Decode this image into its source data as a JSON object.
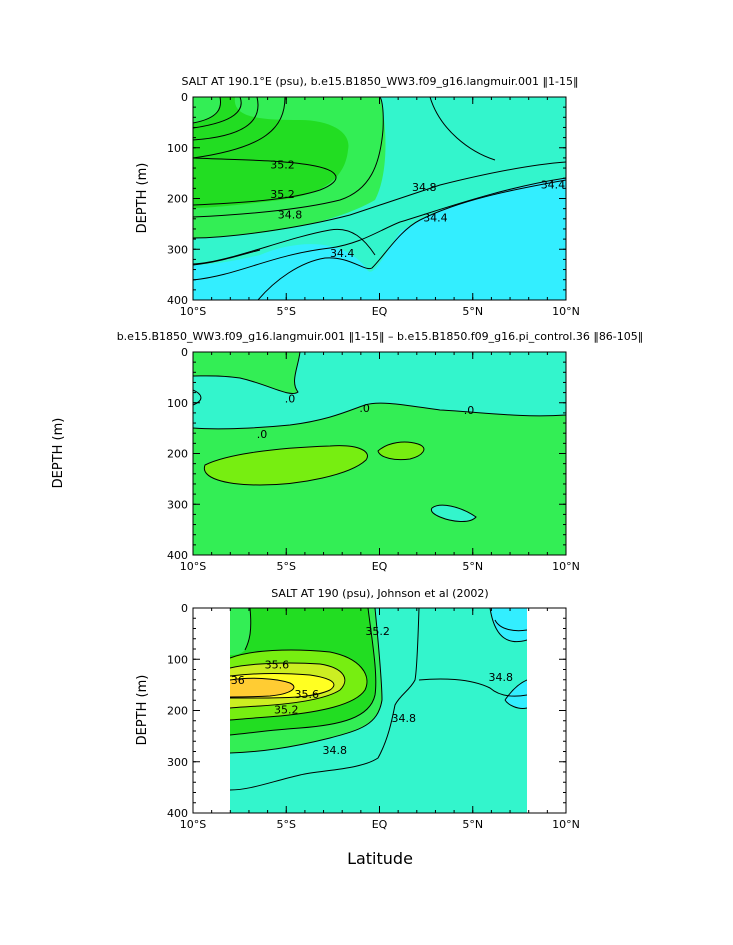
{
  "figure": {
    "xlabel": "Latitude",
    "x_ticks": [
      "10°S",
      "5°S",
      "EQ",
      "5°N",
      "10°N"
    ],
    "y_ticks": [
      "0",
      "100",
      "200",
      "300",
      "400"
    ],
    "colors": {
      "cyan": "#33eeff",
      "aqua": "#33f5cc",
      "green": "#33ee55",
      "darkgreen": "#22dd22",
      "lime": "#77ee11",
      "yellowgreen": "#ccee22",
      "yellow": "#ffff22",
      "orange": "#ffcc33"
    }
  },
  "chart_data": [
    {
      "type": "contour",
      "title": "SALT AT 190.1°E (psu), b.e15.B1850_WW3.f09_g16.langmuir.001 ‖1-15‖",
      "xlabel": "",
      "ylabel": "DEPTH (m)",
      "xlim": [
        -10,
        10
      ],
      "ylim": [
        0,
        400
      ],
      "y_inverted": true,
      "contour_labels": [
        {
          "text": "35.2",
          "lat": -5.2,
          "depth": 133
        },
        {
          "text": "35.2",
          "lat": -5.2,
          "depth": 191
        },
        {
          "text": "34.8",
          "lat": -4.8,
          "depth": 232
        },
        {
          "text": "34.8",
          "lat": 2.4,
          "depth": 177
        },
        {
          "text": "34.4",
          "lat": -2.0,
          "depth": 307
        },
        {
          "text": "34.4",
          "lat": 3.0,
          "depth": 237
        },
        {
          "text": "34.4",
          "lat": 9.3,
          "depth": 172
        }
      ]
    },
    {
      "type": "contour",
      "title": "b.e15.B1850_WW3.f09_g16.langmuir.001 ‖1-15‖ – b.e15.B1850.f09_g16.pi_control.36 ‖86-105‖",
      "xlabel": "",
      "ylabel": "DEPTH (m)",
      "xlim": [
        -10,
        10
      ],
      "ylim": [
        0,
        400
      ],
      "y_inverted": true,
      "contour_labels": [
        {
          "text": ".0",
          "lat": -4.8,
          "depth": 92
        },
        {
          "text": ".0",
          "lat": -0.8,
          "depth": 110
        },
        {
          "text": ".0",
          "lat": 4.8,
          "depth": 114
        },
        {
          "text": ".0",
          "lat": -6.3,
          "depth": 162
        }
      ]
    },
    {
      "type": "contour",
      "title": "SALT AT 190 (psu), Johnson et al (2002)",
      "xlabel": "Latitude",
      "ylabel": "DEPTH (m)",
      "xlim": [
        -10,
        10
      ],
      "ylim": [
        0,
        400
      ],
      "y_inverted": true,
      "data_extent": [
        -8,
        8
      ],
      "contour_labels": [
        {
          "text": "36",
          "lat": -7.6,
          "depth": 140
        },
        {
          "text": "35.6",
          "lat": -5.5,
          "depth": 110
        },
        {
          "text": "35.6",
          "lat": -3.9,
          "depth": 168
        },
        {
          "text": "35.2",
          "lat": -5.0,
          "depth": 198
        },
        {
          "text": "35.2",
          "lat": -0.1,
          "depth": 45
        },
        {
          "text": "34.8",
          "lat": 1.3,
          "depth": 215
        },
        {
          "text": "34.8",
          "lat": -2.4,
          "depth": 277
        },
        {
          "text": "34.8",
          "lat": 6.5,
          "depth": 135
        }
      ]
    }
  ]
}
